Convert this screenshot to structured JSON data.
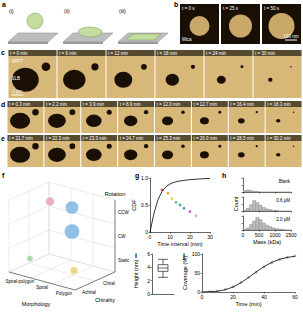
{
  "panel_labels": [
    "a",
    "b",
    "c",
    "d",
    "e",
    "f",
    "g",
    "h",
    "i",
    "j"
  ],
  "a": {
    "steps": [
      "(i)",
      "(ii)",
      "(iii)"
    ]
  },
  "b": {
    "times": [
      "t = 0 s",
      "t = 25 s",
      "t = 50 s"
    ],
    "substrate": "Mica",
    "scale_bar": "100 nm"
  },
  "c": {
    "times": [
      "t = 0 min",
      "t = 6 min",
      "t = 12 min",
      "t = 18 min",
      "t = 24 min",
      "t = 30 min"
    ],
    "annotations": [
      "VPFT",
      "SLB"
    ],
    "scale_bar": "1 µm"
  },
  "d": {
    "times": [
      "t = 0.3 min",
      "t = 2.2 min",
      "t = 3.9 min",
      "t = 8.9 min",
      "t = 12.0 min",
      "t = 12.7 min",
      "t = 16.4 min",
      "t = 18.3 min"
    ]
  },
  "e": {
    "times": [
      "t = 21.7 min",
      "t = 22.3 min",
      "t = 23.3 min",
      "t = 24.7 min",
      "t = 25.3 min",
      "t = 26.0 min",
      "t = 28.5 min",
      "t = 30.2 min"
    ]
  },
  "f": {
    "axes": {
      "morphology": "Morphology",
      "chirality": "Chirality",
      "rotation": "Rotation"
    },
    "morphology": [
      "Spiral-polygon",
      "Spiral",
      "Polygon"
    ],
    "chirality": [
      "Achiral",
      "Chiral"
    ],
    "rotation": [
      "Static",
      "CW",
      "CCW"
    ],
    "points": [
      {
        "morphology": "Spiral-polygon",
        "chirality": "Chiral",
        "rotation": "CCW",
        "size": 4,
        "color": "#e8a0c0"
      },
      {
        "morphology": "Spiral",
        "chirality": "Chiral",
        "rotation": "CW",
        "size": 12,
        "color": "#7fb4e0"
      },
      {
        "morphology": "Spiral",
        "chirality": "Chiral",
        "rotation": "CCW",
        "size": 9,
        "color": "#7fb4e0"
      },
      {
        "morphology": "Polygon",
        "chirality": "Achiral",
        "rotation": "Static",
        "size": 3,
        "color": "#e8d070"
      },
      {
        "morphology": "Spiral-polygon",
        "chirality": "Achiral",
        "rotation": "Static",
        "size": 2,
        "color": "#9fd49f"
      }
    ]
  },
  "chart_data": [
    {
      "type": "line",
      "xlabel": "Time interval (min)",
      "ylabel": "CDF",
      "xlim": [
        0,
        30
      ],
      "xticks": [
        0,
        10,
        20,
        30
      ],
      "ylim": [
        0,
        1
      ],
      "yticks": [
        0,
        0.5,
        {
          "value": 1,
          "label": "1.0"
        }
      ],
      "series": [
        {
          "type": "line",
          "color": "#000000",
          "x": [
            0,
            2,
            4,
            6,
            8,
            10,
            12,
            14,
            16,
            18,
            20,
            22,
            24,
            26,
            28,
            30
          ],
          "values": [
            0,
            0.35,
            0.6,
            0.75,
            0.84,
            0.89,
            0.92,
            0.94,
            0.95,
            0.96,
            0.97,
            0.975,
            0.98,
            0.985,
            0.99,
            0.99
          ]
        },
        {
          "type": "scatter",
          "colors": [
            "#e41a1c",
            "#ff7f00",
            "#f0c419",
            "#4daf4a",
            "#1b9e77",
            "#377eb8",
            "#984ea3",
            "#f781bf"
          ],
          "x": [
            6,
            9,
            11,
            13,
            15,
            17,
            20,
            23
          ],
          "values": [
            0.78,
            0.72,
            0.62,
            0.55,
            0.5,
            0.44,
            0.38,
            0.3
          ]
        }
      ]
    },
    {
      "type": "histogram",
      "title": "Blank",
      "tick_labels": false,
      "xlim": [
        0,
        1500
      ],
      "xticks": [
        0,
        500,
        1000,
        1500
      ],
      "ylim": [
        0,
        20
      ],
      "yticks": [
        0,
        10,
        20
      ],
      "bins": [
        0,
        100,
        200,
        300,
        400,
        500,
        600,
        700,
        800,
        900,
        1000,
        1100,
        1200,
        1300,
        1400,
        1500
      ],
      "counts": [
        2,
        3,
        2,
        1,
        1,
        0,
        0,
        0,
        0,
        0,
        0,
        0,
        0,
        0,
        0
      ],
      "color": "#bdbdbd"
    },
    {
      "type": "histogram",
      "title": "0.6 µM",
      "ylabel": "Count",
      "tick_labels": false,
      "xlim": [
        0,
        1500
      ],
      "xticks": [
        0,
        500,
        1000,
        1500
      ],
      "ylim": [
        0,
        20
      ],
      "yticks": [
        0,
        10,
        20
      ],
      "bins": [
        0,
        100,
        200,
        300,
        400,
        500,
        600,
        700,
        800,
        900,
        1000,
        1100,
        1200,
        1300,
        1400,
        1500
      ],
      "counts": [
        1,
        4,
        9,
        15,
        12,
        8,
        5,
        3,
        2,
        1,
        1,
        0,
        0,
        0,
        0
      ],
      "color": "#bdbdbd"
    },
    {
      "type": "histogram",
      "title": "2.0 µM",
      "xlabel": "Mass (kDa)",
      "tick_labels": "x",
      "xlim": [
        0,
        1500
      ],
      "xticks": [
        0,
        500,
        1000,
        1500
      ],
      "ylim": [
        0,
        20
      ],
      "yticks": [
        0,
        10,
        20
      ],
      "bins": [
        0,
        100,
        200,
        300,
        400,
        500,
        600,
        700,
        800,
        900,
        1000,
        1100,
        1200,
        1300,
        1400,
        1500
      ],
      "counts": [
        1,
        3,
        8,
        13,
        18,
        15,
        10,
        7,
        5,
        3,
        2,
        1,
        1,
        0,
        0
      ],
      "color": "#bdbdbd"
    },
    {
      "type": "box",
      "ylabel": "Height (nm)",
      "categories": [
        null
      ],
      "ylim": [
        0,
        6
      ],
      "yticks": [
        0,
        2,
        4,
        6
      ],
      "values": [
        [
          2.5,
          3.4,
          3.9,
          4.4,
          5.2
        ]
      ],
      "color": "#ffffff"
    },
    {
      "type": "scatter",
      "xlabel": "Time (min)",
      "ylabel": "Coverage (%)",
      "xlim": [
        0,
        60
      ],
      "xticks": [
        0,
        20,
        40,
        60
      ],
      "ylim": [
        0,
        100
      ],
      "yticks": [
        0,
        50,
        100
      ],
      "x": [
        0,
        5,
        10,
        15,
        20,
        25,
        30,
        35,
        40,
        45,
        50,
        55,
        60
      ],
      "series": [
        {
          "type": "scatter",
          "color": "#9e9e9e",
          "values": [
            0,
            1,
            3,
            7,
            14,
            25,
            38,
            52,
            66,
            77,
            85,
            91,
            95
          ]
        },
        {
          "type": "line",
          "color": "#000000",
          "values": [
            0,
            1,
            2,
            6,
            13,
            24,
            38,
            53,
            67,
            78,
            86,
            91,
            94
          ]
        }
      ]
    }
  ]
}
